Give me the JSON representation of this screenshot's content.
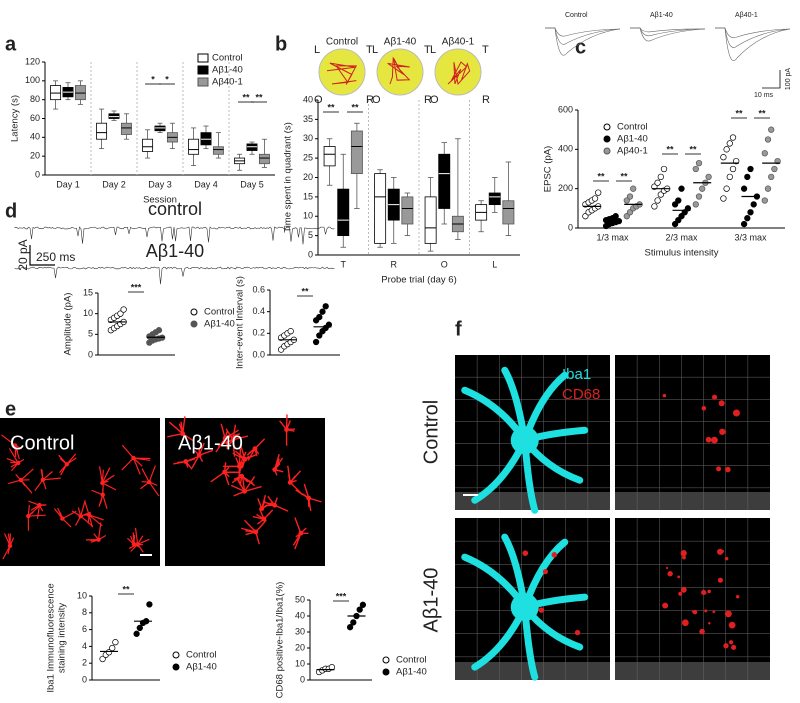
{
  "panels": [
    "a",
    "b",
    "c",
    "d",
    "e",
    "f"
  ],
  "images": {
    "e": [
      "Control",
      "Aβ1-40"
    ],
    "f": {
      "stains": [
        "Iba1",
        "CD68"
      ],
      "rows": [
        "Control",
        "Aβ1-40"
      ]
    }
  },
  "traces": {
    "d": [
      "control",
      "Aβ1-40"
    ],
    "d_scale": [
      "20 pA",
      "250 ms"
    ],
    "c_scale": [
      "100 pA",
      "10 ms"
    ]
  },
  "chart_data": [
    {
      "type": "box",
      "ylabel": "Latency (s)",
      "xlabel": "Session",
      "categories": [
        "Day 1",
        "Day 2",
        "Day 3",
        "Day 4",
        "Day 5"
      ],
      "ylim": [
        0,
        120
      ],
      "yticks": [
        0,
        20,
        40,
        60,
        80,
        100,
        120
      ],
      "annotations": [
        "*",
        "*",
        "**",
        "**"
      ],
      "series": [
        {
          "name": "Control",
          "color": "#ffffff",
          "whisker_low": [
            70,
            28,
            18,
            10,
            5
          ],
          "q1": [
            80,
            38,
            25,
            22,
            12
          ],
          "median": [
            87,
            45,
            30,
            27,
            15
          ],
          "q3": [
            95,
            55,
            38,
            38,
            18
          ],
          "whisker_high": [
            100,
            70,
            48,
            50,
            22
          ]
        },
        {
          "name": "Aβ1-40",
          "color": "#000000",
          "whisker_low": [
            80,
            58,
            45,
            28,
            22
          ],
          "q1": [
            83,
            60,
            47,
            32,
            26
          ],
          "median": [
            88,
            62,
            50,
            38,
            30
          ],
          "q3": [
            93,
            65,
            52,
            45,
            33
          ],
          "whisker_high": [
            98,
            68,
            55,
            52,
            35
          ]
        },
        {
          "name": "Aβ40-1",
          "color": "#999999",
          "whisker_low": [
            75,
            38,
            28,
            18,
            8
          ],
          "q1": [
            80,
            43,
            35,
            22,
            12
          ],
          "median": [
            87,
            50,
            40,
            27,
            18
          ],
          "q3": [
            95,
            55,
            45,
            30,
            22
          ],
          "whisker_high": [
            100,
            65,
            55,
            45,
            38
          ]
        }
      ]
    },
    {
      "type": "box",
      "ylabel": "Time spent in quadrant (s)",
      "xlabel": "Probe trial (day 6)",
      "categories": [
        "T",
        "R",
        "O",
        "L"
      ],
      "maze_labels": [
        "L",
        "T",
        "O",
        "R"
      ],
      "ylim": [
        0,
        40
      ],
      "yticks": [
        0,
        5,
        10,
        15,
        20,
        25,
        30,
        35,
        40
      ],
      "annotations": [
        "**",
        "**"
      ],
      "series": [
        {
          "name": "Control",
          "color": "#ffffff",
          "whisker_low": [
            18,
            2,
            1,
            6
          ],
          "q1": [
            23,
            3,
            3,
            9
          ],
          "median": [
            26,
            15,
            7,
            11
          ],
          "q3": [
            28,
            21,
            15,
            13
          ],
          "whisker_high": [
            30,
            22,
            20,
            14
          ]
        },
        {
          "name": "Aβ1-40",
          "color": "#000000",
          "whisker_low": [
            2,
            3,
            8,
            11
          ],
          "q1": [
            5,
            9,
            12,
            13
          ],
          "median": [
            9,
            13,
            21,
            15
          ],
          "q3": [
            17,
            17,
            26,
            16
          ],
          "whisker_high": [
            26,
            20,
            29,
            20
          ]
        },
        {
          "name": "Aβ40-1",
          "color": "#999999",
          "whisker_low": [
            12,
            5,
            4,
            5
          ],
          "q1": [
            21,
            8,
            6,
            8
          ],
          "median": [
            28,
            12,
            8,
            12
          ],
          "q3": [
            32,
            15,
            10,
            14
          ],
          "whisker_high": [
            34,
            16,
            30,
            24
          ]
        }
      ]
    },
    {
      "type": "dot",
      "ylabel": "EPSC (pA)",
      "xlabel": "Stimulus intensity",
      "categories": [
        "1/3 max",
        "2/3 max",
        "3/3 max"
      ],
      "ylim": [
        0,
        600
      ],
      "yticks": [
        0,
        200,
        400,
        600
      ],
      "annotations": [
        "**",
        "**",
        "**",
        "**",
        "**",
        "**"
      ],
      "series": [
        {
          "name": "Control",
          "color": "#ffffff",
          "values": [
            [
              60,
              80,
              90,
              100,
              110,
              120,
              130,
              140,
              150,
              180
            ],
            [
              110,
              140,
              170,
              190,
              200,
              210,
              230,
              260,
              300
            ],
            [
              150,
              200,
              260,
              300,
              340,
              360,
              400,
              430,
              460
            ]
          ],
          "mean": [
            110,
            200,
            330
          ]
        },
        {
          "name": "Aβ1-40",
          "color": "#000000",
          "values": [
            [
              10,
              20,
              25,
              30,
              35,
              40,
              45,
              50,
              60
            ],
            [
              20,
              40,
              60,
              80,
              100,
              120,
              140,
              200
            ],
            [
              20,
              50,
              80,
              120,
              160,
              200,
              260,
              300
            ]
          ],
          "mean": [
            35,
            90,
            160
          ]
        },
        {
          "name": "Aβ40-1",
          "color": "#999999",
          "values": [
            [
              60,
              80,
              100,
              110,
              120,
              140,
              160,
              200
            ],
            [
              120,
              160,
              200,
              230,
              260,
              300,
              330
            ],
            [
              140,
              200,
              260,
              300,
              340,
              380,
              450,
              500
            ]
          ],
          "mean": [
            120,
            230,
            330
          ]
        }
      ]
    },
    {
      "type": "dot",
      "ylabel": "Amplitude (pA)",
      "ylim": [
        0,
        15
      ],
      "yticks": [
        0,
        5,
        10,
        15
      ],
      "annotations": [
        "***"
      ],
      "series": [
        {
          "name": "Control",
          "color": "#ffffff",
          "values": [
            6,
            6.5,
            7,
            7.5,
            8,
            8.5,
            9,
            9.5,
            10,
            11
          ],
          "mean": 8
        },
        {
          "name": "Aβ1-40",
          "color": "#555555",
          "values": [
            3,
            3.5,
            3.8,
            4,
            4.2,
            4.5,
            5,
            5.5,
            6
          ],
          "mean": 4.3
        }
      ]
    },
    {
      "type": "dot",
      "ylabel": "Inter-event Interval (s)",
      "ylim": [
        0,
        0.6
      ],
      "yticks": [
        {
          "value": 0,
          "label": "0.0"
        },
        0.2,
        0.4,
        0.6
      ],
      "annotations": [
        "**"
      ],
      "series": [
        {
          "name": "Control",
          "color": "#ffffff",
          "values": [
            0.05,
            0.08,
            0.1,
            0.12,
            0.14,
            0.16,
            0.18,
            0.2,
            0.22
          ],
          "mean": 0.14
        },
        {
          "name": "Aβ1-40",
          "color": "#000000",
          "values": [
            0.12,
            0.18,
            0.22,
            0.25,
            0.28,
            0.32,
            0.35,
            0.4,
            0.45
          ],
          "mean": 0.26
        }
      ]
    },
    {
      "type": "dot",
      "ylabel": [
        "Iba1 Immunofluorescence",
        "staining intensity"
      ],
      "ylim": [
        0,
        10
      ],
      "yticks": [
        0,
        2,
        4,
        6,
        8,
        10
      ],
      "annotations": [
        "**"
      ],
      "series": [
        {
          "name": "Control",
          "color": "#ffffff",
          "values": [
            2.5,
            3,
            3.3,
            3.8,
            4.5
          ],
          "mean": 3.4
        },
        {
          "name": "Aβ1-40",
          "color": "#000000",
          "values": [
            5.5,
            6.2,
            6.8,
            7,
            9
          ],
          "mean": 7
        }
      ]
    },
    {
      "type": "dot",
      "ylabel": "CD68 positive-Iba1/Iba1(%)",
      "ylim": [
        0,
        50
      ],
      "yticks": [
        0,
        10,
        20,
        30,
        40,
        50
      ],
      "annotations": [
        "***"
      ],
      "series": [
        {
          "name": "Control",
          "color": "#ffffff",
          "values": [
            5,
            6,
            7,
            7,
            8
          ],
          "mean": 6.5
        },
        {
          "name": "Aβ1-40",
          "color": "#000000",
          "values": [
            33,
            36,
            40,
            44,
            47
          ],
          "mean": 40
        }
      ]
    }
  ]
}
